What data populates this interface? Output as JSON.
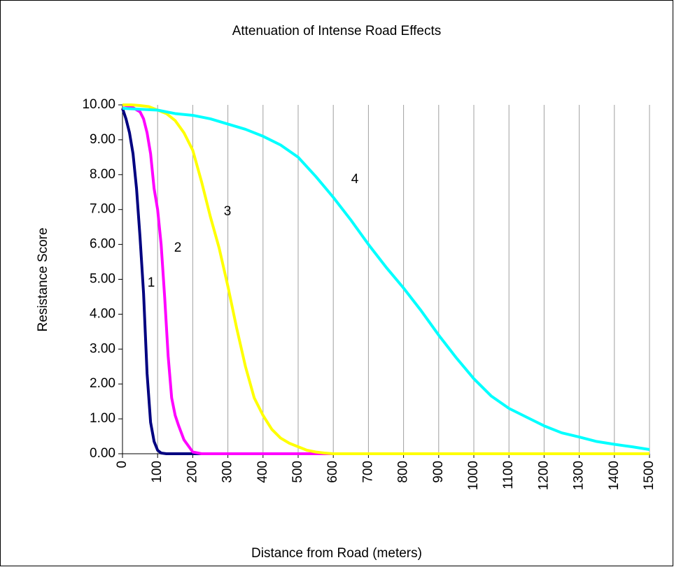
{
  "chart_data": {
    "type": "line",
    "title": "Attenuation of Intense Road Effects",
    "xlabel": "Distance from Road (meters)",
    "ylabel": "Resistance Score",
    "xlim": [
      0,
      1500
    ],
    "ylim": [
      0,
      10
    ],
    "xticks": [
      0,
      100,
      200,
      300,
      400,
      500,
      600,
      700,
      800,
      900,
      1000,
      1100,
      1200,
      1300,
      1400,
      1500
    ],
    "yticks": [
      {
        "value": 0,
        "label": "0.00"
      },
      {
        "value": 1,
        "label": "1.00"
      },
      {
        "value": 2,
        "label": "2.00"
      },
      {
        "value": 3,
        "label": "3.00"
      },
      {
        "value": 4,
        "label": "4.00"
      },
      {
        "value": 5,
        "label": "5.00"
      },
      {
        "value": 6,
        "label": "6.00"
      },
      {
        "value": 7,
        "label": "7.00"
      },
      {
        "value": 8,
        "label": "8.00"
      },
      {
        "value": 9,
        "label": "9.00"
      },
      {
        "value": 10,
        "label": "10.00"
      }
    ],
    "grid": "x",
    "annotations": [
      "1",
      "2",
      "3",
      "4"
    ],
    "series": [
      {
        "color": "#000080",
        "x": [
          0,
          10,
          20,
          30,
          40,
          50,
          60,
          70,
          80,
          90,
          100,
          110,
          125,
          1500
        ],
        "values": [
          9.9,
          9.6,
          9.2,
          8.6,
          7.6,
          6.2,
          4.6,
          2.3,
          0.9,
          0.35,
          0.1,
          0.02,
          0,
          0
        ]
      },
      {
        "color": "#ff00ff",
        "x": [
          0,
          25,
          50,
          60,
          70,
          80,
          90,
          100,
          110,
          120,
          130,
          140,
          150,
          160,
          175,
          200,
          225,
          1500
        ],
        "values": [
          10,
          9.95,
          9.8,
          9.6,
          9.2,
          8.6,
          7.6,
          7.0,
          6.0,
          4.5,
          2.8,
          1.6,
          1.1,
          0.8,
          0.4,
          0.05,
          0,
          0
        ]
      },
      {
        "color": "#ffff00",
        "x": [
          0,
          25,
          50,
          75,
          100,
          125,
          150,
          175,
          200,
          225,
          250,
          275,
          300,
          325,
          350,
          375,
          400,
          425,
          450,
          475,
          500,
          525,
          550,
          575,
          600,
          1500
        ],
        "values": [
          10,
          10,
          9.98,
          9.95,
          9.85,
          9.75,
          9.55,
          9.2,
          8.7,
          7.8,
          6.8,
          5.9,
          4.8,
          3.6,
          2.5,
          1.6,
          1.1,
          0.7,
          0.45,
          0.3,
          0.2,
          0.1,
          0.05,
          0.02,
          0,
          0
        ]
      },
      {
        "color": "#00ffff",
        "x": [
          0,
          100,
          150,
          200,
          250,
          300,
          350,
          400,
          450,
          500,
          550,
          600,
          650,
          700,
          750,
          800,
          850,
          900,
          950,
          1000,
          1050,
          1100,
          1150,
          1200,
          1250,
          1300,
          1350,
          1400,
          1450,
          1500
        ],
        "values": [
          9.9,
          9.85,
          9.75,
          9.7,
          9.6,
          9.45,
          9.3,
          9.1,
          8.85,
          8.5,
          7.95,
          7.35,
          6.7,
          6.0,
          5.35,
          4.75,
          4.1,
          3.4,
          2.75,
          2.15,
          1.65,
          1.3,
          1.05,
          0.8,
          0.6,
          0.48,
          0.35,
          0.27,
          0.2,
          0.12
        ]
      }
    ]
  }
}
